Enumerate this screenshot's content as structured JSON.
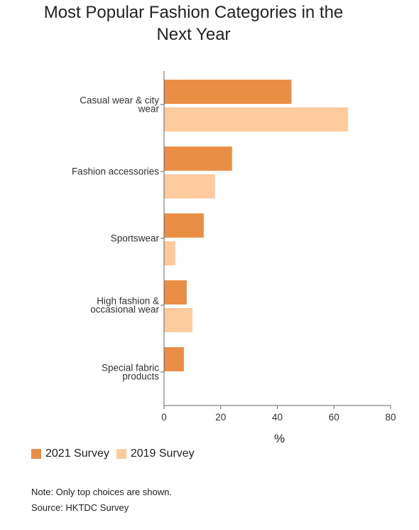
{
  "title_line1": "Most Popular Fashion Categories in the",
  "title_line2": "Next Year",
  "legend": [
    {
      "label": "2021 Survey",
      "color": "#E88F45"
    },
    {
      "label": "2019 Survey",
      "color": "#FECB9E"
    }
  ],
  "note": "Note: Only top choices are shown.",
  "source": "Source: HKTDC Survey",
  "chart_data": {
    "type": "bar",
    "orientation": "horizontal",
    "categories": [
      [
        "Casual wear & city",
        "wear"
      ],
      [
        "Fashion accessories"
      ],
      [
        "Sportswear"
      ],
      [
        "High fashion &",
        "occasional wear"
      ],
      [
        "Special fabric",
        "products"
      ]
    ],
    "series": [
      {
        "name": "2021 Survey",
        "color": "#E88F45",
        "values": [
          45,
          24,
          14,
          8,
          7
        ]
      },
      {
        "name": "2019 Survey",
        "color": "#FECB9E",
        "values": [
          65,
          18,
          4,
          10,
          0
        ]
      }
    ],
    "xlabel": "%",
    "xlim": [
      0,
      80
    ],
    "xticks": [
      0,
      20,
      40,
      60,
      80
    ],
    "grid": false,
    "legend_position": "bottom-left"
  }
}
